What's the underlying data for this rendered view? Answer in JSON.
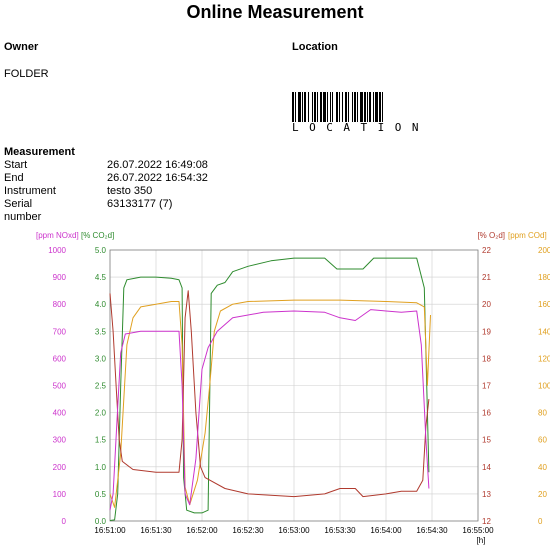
{
  "report": {
    "title": "Online Measurement",
    "owner_label": "Owner",
    "owner_value": "FOLDER",
    "location_label": "Location",
    "barcode_text": "LOCATION",
    "measurement_label": "Measurement",
    "rows": [
      {
        "key": "Start",
        "value": "26.07.2022 16:49:08"
      },
      {
        "key": "End",
        "value": "26.07.2022 16:54:32"
      },
      {
        "key": "Instrument",
        "value": "testo 350"
      },
      {
        "key": "Serial number",
        "value": "63133177 (7)"
      }
    ]
  },
  "chart_data": {
    "type": "line",
    "x_unit_label": "[h]",
    "x_ticks": [
      "16:51:00",
      "16:51:30",
      "16:52:00",
      "16:52:30",
      "16:53:00",
      "16:53:30",
      "16:54:00",
      "16:54:30",
      "16:55:00"
    ],
    "x_range": [
      "16:51:00",
      "16:55:00"
    ],
    "grid": true,
    "axes": [
      {
        "id": "nox",
        "label": "[ppm NOxd]",
        "side": "left-outer",
        "color": "#cc33cc",
        "min": 0,
        "max": 1000,
        "ticks": [
          "0",
          "100",
          "200",
          "300",
          "400",
          "500",
          "600",
          "700",
          "800",
          "900",
          "1000"
        ]
      },
      {
        "id": "co2",
        "label": "[% CO₂d]",
        "side": "left-inner",
        "color": "#2e8b2e",
        "min": 0,
        "max": 5,
        "ticks": [
          "0.0",
          "0.5",
          "1.0",
          "1.5",
          "2.0",
          "2.5",
          "3.0",
          "3.5",
          "4.0",
          "4.5",
          "5.0"
        ]
      },
      {
        "id": "o2",
        "label": "[% O₂d]",
        "side": "right-inner",
        "color": "#b03a2e",
        "min": 12,
        "max": 22,
        "ticks": [
          "12",
          "13",
          "14",
          "15",
          "16",
          "17",
          "18",
          "19",
          "20",
          "21",
          "22"
        ]
      },
      {
        "id": "co",
        "label": "[ppm COd]",
        "side": "right-outer",
        "color": "#e0a020",
        "min": 0,
        "max": 200,
        "ticks": [
          "0",
          "20",
          "40",
          "60",
          "80",
          "100",
          "120",
          "140",
          "160",
          "180",
          "200"
        ]
      }
    ],
    "series": [
      {
        "axis": "co2",
        "color": "#2e8b2e",
        "points": [
          [
            "16:51:00",
            0.01
          ],
          [
            "16:51:03",
            0.02
          ],
          [
            "16:51:05",
            0.5
          ],
          [
            "16:51:07",
            2.5
          ],
          [
            "16:51:09",
            4.3
          ],
          [
            "16:51:11",
            4.45
          ],
          [
            "16:51:20",
            4.5
          ],
          [
            "16:51:30",
            4.5
          ],
          [
            "16:51:40",
            4.48
          ],
          [
            "16:51:45",
            4.45
          ],
          [
            "16:51:47",
            4.3
          ],
          [
            "16:51:48",
            0.8
          ],
          [
            "16:51:50",
            0.2
          ],
          [
            "16:51:55",
            0.15
          ],
          [
            "16:52:00",
            0.15
          ],
          [
            "16:52:04",
            0.2
          ],
          [
            "16:52:06",
            4.2
          ],
          [
            "16:52:10",
            4.35
          ],
          [
            "16:52:15",
            4.4
          ],
          [
            "16:52:20",
            4.6
          ],
          [
            "16:52:30",
            4.7
          ],
          [
            "16:52:45",
            4.8
          ],
          [
            "16:53:00",
            4.85
          ],
          [
            "16:53:20",
            4.85
          ],
          [
            "16:53:28",
            4.65
          ],
          [
            "16:53:45",
            4.65
          ],
          [
            "16:53:52",
            4.85
          ],
          [
            "16:54:20",
            4.85
          ],
          [
            "16:54:25",
            4.3
          ],
          [
            "16:54:28",
            0.9
          ]
        ]
      },
      {
        "axis": "co",
        "color": "#e0a020",
        "points": [
          [
            "16:51:00",
            20
          ],
          [
            "16:51:03",
            10
          ],
          [
            "16:51:05",
            30
          ],
          [
            "16:51:07",
            50
          ],
          [
            "16:51:09",
            90
          ],
          [
            "16:51:11",
            130
          ],
          [
            "16:51:15",
            150
          ],
          [
            "16:51:20",
            158
          ],
          [
            "16:51:30",
            160
          ],
          [
            "16:51:40",
            162
          ],
          [
            "16:51:45",
            162
          ],
          [
            "16:51:47",
            130
          ],
          [
            "16:51:49",
            25
          ],
          [
            "16:51:52",
            12
          ],
          [
            "16:51:57",
            30
          ],
          [
            "16:52:02",
            65
          ],
          [
            "16:52:05",
            100
          ],
          [
            "16:52:08",
            140
          ],
          [
            "16:52:12",
            155
          ],
          [
            "16:52:20",
            160
          ],
          [
            "16:52:30",
            162
          ],
          [
            "16:53:00",
            163
          ],
          [
            "16:53:30",
            163
          ],
          [
            "16:54:00",
            162
          ],
          [
            "16:54:20",
            161
          ],
          [
            "16:54:25",
            158
          ],
          [
            "16:54:27",
            100
          ],
          [
            "16:54:29",
            152
          ]
        ]
      },
      {
        "axis": "o2",
        "color": "#b03a2e",
        "points": [
          [
            "16:51:00",
            20.4
          ],
          [
            "16:51:02",
            19
          ],
          [
            "16:51:04",
            17
          ],
          [
            "16:51:06",
            15
          ],
          [
            "16:51:08",
            14.2
          ],
          [
            "16:51:15",
            13.9
          ],
          [
            "16:51:30",
            13.8
          ],
          [
            "16:51:45",
            13.8
          ],
          [
            "16:51:47",
            15
          ],
          [
            "16:51:49",
            19.5
          ],
          [
            "16:51:51",
            20.5
          ],
          [
            "16:51:53",
            19
          ],
          [
            "16:51:56",
            16
          ],
          [
            "16:51:59",
            14
          ],
          [
            "16:52:02",
            13.6
          ],
          [
            "16:52:15",
            13.2
          ],
          [
            "16:52:30",
            13
          ],
          [
            "16:53:00",
            12.9
          ],
          [
            "16:53:20",
            13
          ],
          [
            "16:53:30",
            13.2
          ],
          [
            "16:53:40",
            13.2
          ],
          [
            "16:53:45",
            12.9
          ],
          [
            "16:54:00",
            13
          ],
          [
            "16:54:10",
            13.1
          ],
          [
            "16:54:20",
            13.1
          ],
          [
            "16:54:24",
            13.5
          ],
          [
            "16:54:26",
            15.5
          ],
          [
            "16:54:28",
            16.5
          ]
        ]
      },
      {
        "axis": "nox",
        "color": "#cc33cc",
        "points": [
          [
            "16:51:00",
            40
          ],
          [
            "16:51:02",
            100
          ],
          [
            "16:51:05",
            420
          ],
          [
            "16:51:07",
            620
          ],
          [
            "16:51:10",
            690
          ],
          [
            "16:51:20",
            700
          ],
          [
            "16:51:30",
            700
          ],
          [
            "16:51:45",
            700
          ],
          [
            "16:51:47",
            500
          ],
          [
            "16:51:49",
            100
          ],
          [
            "16:51:52",
            60
          ],
          [
            "16:51:56",
            230
          ],
          [
            "16:52:00",
            560
          ],
          [
            "16:52:04",
            640
          ],
          [
            "16:52:10",
            700
          ],
          [
            "16:52:20",
            750
          ],
          [
            "16:52:40",
            770
          ],
          [
            "16:53:00",
            775
          ],
          [
            "16:53:20",
            770
          ],
          [
            "16:53:30",
            750
          ],
          [
            "16:53:40",
            740
          ],
          [
            "16:53:50",
            780
          ],
          [
            "16:54:00",
            775
          ],
          [
            "16:54:10",
            770
          ],
          [
            "16:54:20",
            775
          ],
          [
            "16:54:23",
            650
          ],
          [
            "16:54:26",
            300
          ],
          [
            "16:54:28",
            120
          ]
        ]
      }
    ]
  }
}
